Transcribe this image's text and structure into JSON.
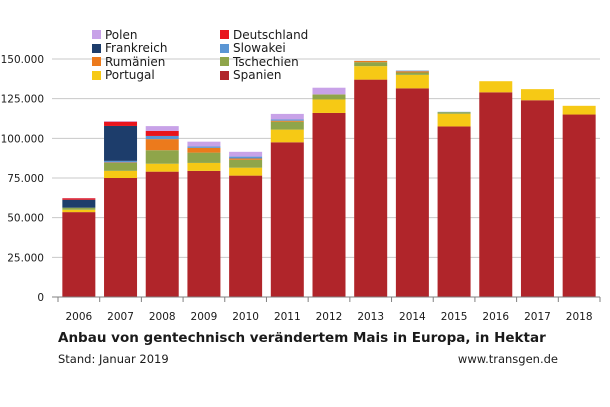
{
  "chart_data": {
    "type": "bar",
    "stacked": true,
    "title": "Anbau von gentechnisch verändertem Mais in Europa, in Hektar",
    "categories": [
      "2006",
      "2007",
      "2008",
      "2009",
      "2010",
      "2011",
      "2012",
      "2013",
      "2014",
      "2015",
      "2016",
      "2017",
      "2018"
    ],
    "ylim": [
      0,
      150000
    ],
    "yticks": [
      0,
      25000,
      50000,
      75000,
      100000,
      125000,
      150000
    ],
    "ytick_labels": [
      "0",
      "25.000",
      "50.000",
      "75.000",
      "100.000",
      "125.000",
      "150.000"
    ],
    "grid": true,
    "legend_position": "top-left",
    "series": [
      {
        "name": "Spanien",
        "color": "#b0252a",
        "values": [
          53500,
          75000,
          79000,
          79500,
          76500,
          97500,
          116000,
          137000,
          131500,
          107500,
          129000,
          124000,
          115000
        ]
      },
      {
        "name": "Portugal",
        "color": "#f6c915",
        "values": [
          1500,
          4500,
          5000,
          5000,
          5000,
          8000,
          8500,
          8500,
          8500,
          8000,
          7000,
          7000,
          5500
        ]
      },
      {
        "name": "Tschechien",
        "color": "#8fa54a",
        "values": [
          1300,
          5000,
          8500,
          6500,
          5000,
          5000,
          3000,
          2500,
          1500,
          1000,
          0,
          0,
          0
        ]
      },
      {
        "name": "Rumänien",
        "color": "#ec7a1c",
        "values": [
          0,
          300,
          7000,
          3000,
          800,
          600,
          200,
          800,
          800,
          0,
          0,
          0,
          0
        ]
      },
      {
        "name": "Slowakei",
        "color": "#5b96d4",
        "values": [
          0,
          1000,
          2000,
          900,
          1200,
          800,
          200,
          100,
          400,
          200,
          0,
          0,
          0
        ]
      },
      {
        "name": "Frankreich",
        "color": "#1d3d6b",
        "values": [
          5000,
          22000,
          0,
          0,
          0,
          0,
          0,
          0,
          0,
          0,
          0,
          0,
          0
        ]
      },
      {
        "name": "Deutschland",
        "color": "#e8141c",
        "values": [
          950,
          2700,
          3200,
          0,
          0,
          0,
          0,
          0,
          0,
          0,
          0,
          0,
          0
        ]
      },
      {
        "name": "Polen",
        "color": "#c8a2e8",
        "values": [
          100,
          300,
          3000,
          3000,
          3000,
          3500,
          4000,
          0,
          0,
          0,
          0,
          0,
          0
        ]
      }
    ],
    "legend_order": [
      "Polen",
      "Deutschland",
      "Frankreich",
      "Slowakei",
      "Rumänien",
      "Tschechien",
      "Portugal",
      "Spanien"
    ]
  },
  "footer": {
    "stand": "Stand: Januar 2019",
    "source": "www.transgen.de"
  }
}
